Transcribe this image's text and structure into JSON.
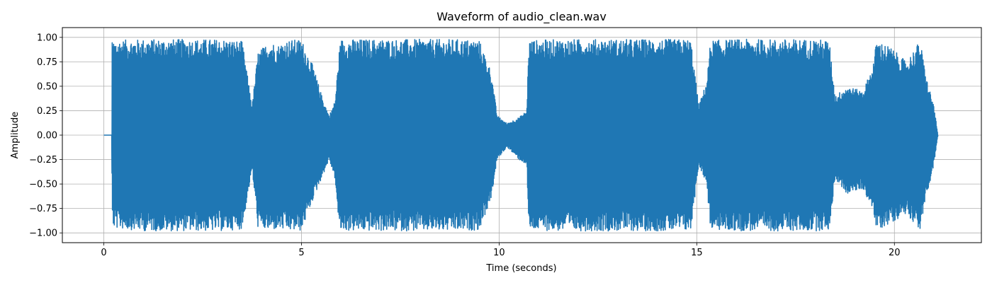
{
  "chart_data": {
    "type": "line",
    "title": "Waveform of audio_clean.wav",
    "xlabel": "Time (seconds)",
    "ylabel": "Amplitude",
    "xlim": [
      -1.05,
      22.2
    ],
    "ylim": [
      -1.1,
      1.1
    ],
    "xticks": [
      0,
      5,
      10,
      15,
      20
    ],
    "xtick_labels": [
      "0",
      "5",
      "10",
      "15",
      "20"
    ],
    "yticks": [
      -1.0,
      -0.75,
      -0.5,
      -0.25,
      0.0,
      0.25,
      0.5,
      0.75,
      1.0
    ],
    "ytick_labels": [
      "−1.00",
      "−0.75",
      "−0.50",
      "−0.25",
      "0.00",
      "0.25",
      "0.50",
      "0.75",
      "1.00"
    ],
    "grid": true,
    "legend": "none",
    "series": [
      {
        "color": "#1f77b4",
        "envelope": {
          "t": [
            0.0,
            0.2,
            0.21,
            0.25,
            1.0,
            2.0,
            3.0,
            3.5,
            3.75,
            3.9,
            4.2,
            4.4,
            4.6,
            5.0,
            5.3,
            5.5,
            5.7,
            5.85,
            5.95,
            6.0,
            7.0,
            8.0,
            9.0,
            9.5,
            9.8,
            9.95,
            10.2,
            10.5,
            10.7,
            10.75,
            11.5,
            12.5,
            13.5,
            14.5,
            14.85,
            15.05,
            15.25,
            15.35,
            16.0,
            17.0,
            18.0,
            18.35,
            18.5,
            18.8,
            19.2,
            19.45,
            19.55,
            19.9,
            20.3,
            20.65,
            20.8,
            21.0,
            21.1
          ],
          "upper": [
            0.0,
            0.0,
            0.95,
            0.97,
            0.98,
            0.98,
            0.98,
            0.96,
            0.3,
            0.85,
            0.96,
            0.92,
            0.97,
            0.98,
            0.7,
            0.42,
            0.2,
            0.35,
            0.85,
            0.98,
            0.98,
            0.98,
            0.98,
            0.97,
            0.65,
            0.2,
            0.12,
            0.18,
            0.25,
            0.97,
            0.98,
            0.98,
            0.98,
            0.98,
            0.98,
            0.3,
            0.55,
            0.97,
            0.98,
            0.98,
            0.98,
            0.97,
            0.4,
            0.5,
            0.45,
            0.7,
            0.97,
            0.9,
            0.75,
            0.97,
            0.6,
            0.3,
            0.0
          ],
          "lower": [
            0.0,
            0.0,
            -0.85,
            -0.95,
            -0.98,
            -0.98,
            -0.98,
            -0.96,
            -0.35,
            -0.95,
            -0.98,
            -0.96,
            -0.98,
            -0.98,
            -0.65,
            -0.45,
            -0.25,
            -0.45,
            -0.95,
            -0.98,
            -0.98,
            -0.98,
            -0.98,
            -0.97,
            -0.65,
            -0.25,
            -0.12,
            -0.25,
            -0.3,
            -0.97,
            -0.98,
            -0.98,
            -0.98,
            -0.98,
            -0.98,
            -0.3,
            -0.5,
            -0.97,
            -0.98,
            -0.98,
            -0.98,
            -0.97,
            -0.45,
            -0.6,
            -0.55,
            -0.75,
            -0.98,
            -0.9,
            -0.8,
            -0.97,
            -0.65,
            -0.3,
            0.0
          ]
        }
      }
    ]
  }
}
